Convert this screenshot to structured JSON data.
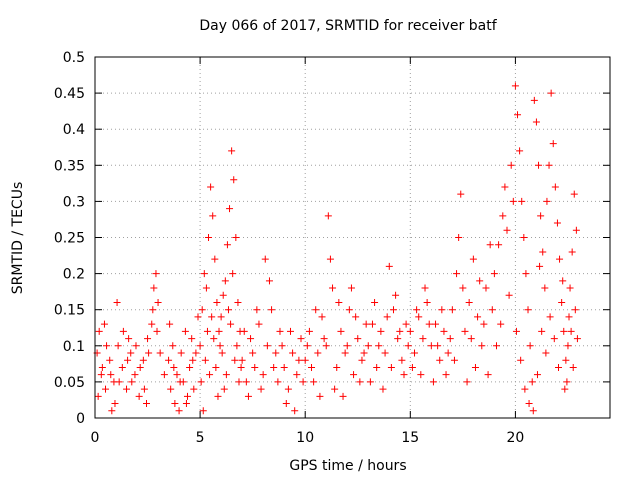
{
  "chart_data": {
    "type": "scatter",
    "title": "Day 066 of 2017, SRMTID for receiver batf",
    "xlabel": "GPS time / hours",
    "ylabel": "SRMTID / TECUs",
    "xlim": [
      0,
      24.5
    ],
    "ylim": [
      0,
      0.5
    ],
    "x_ticks": [
      0,
      5,
      10,
      15,
      20
    ],
    "x_tick_labels": [
      "0",
      "5",
      "10",
      "15",
      "20"
    ],
    "y_ticks": [
      0,
      0.05,
      0.1,
      0.15,
      0.2,
      0.25,
      0.3,
      0.35,
      0.4,
      0.45,
      0.5
    ],
    "y_tick_labels": [
      "0",
      "0.05",
      "0.1",
      "0.15",
      "0.2",
      "0.25",
      "0.3",
      "0.35",
      "0.4",
      "0.45",
      "0.5"
    ],
    "grid": true,
    "legend": "none",
    "marker": "plus",
    "color": "#ff0000",
    "series": [
      {
        "values": [
          [
            0.1,
            0.09
          ],
          [
            0.2,
            0.12
          ],
          [
            0.3,
            0.06
          ],
          [
            0.5,
            0.04
          ],
          [
            0.7,
            0.08
          ],
          [
            0.9,
            0.05
          ],
          [
            1.1,
            0.1
          ],
          [
            1.3,
            0.07
          ],
          [
            1.5,
            0.04
          ],
          [
            1.7,
            0.09
          ],
          [
            1.9,
            0.06
          ],
          [
            2.1,
            0.03
          ],
          [
            2.3,
            0.08
          ],
          [
            2.5,
            0.11
          ],
          [
            2.7,
            0.13
          ],
          [
            2.8,
            0.18
          ],
          [
            2.9,
            0.2
          ],
          [
            3.0,
            0.16
          ],
          [
            3.1,
            0.09
          ],
          [
            3.3,
            0.06
          ],
          [
            0.15,
            0.03
          ],
          [
            0.35,
            0.07
          ],
          [
            0.55,
            0.1
          ],
          [
            0.75,
            0.06
          ],
          [
            0.95,
            0.02
          ],
          [
            1.15,
            0.05
          ],
          [
            1.35,
            0.12
          ],
          [
            1.55,
            0.08
          ],
          [
            1.75,
            0.05
          ],
          [
            1.95,
            0.1
          ],
          [
            2.15,
            0.07
          ],
          [
            2.35,
            0.04
          ],
          [
            2.55,
            0.09
          ],
          [
            2.75,
            0.15
          ],
          [
            2.95,
            0.12
          ],
          [
            0.45,
            0.13
          ],
          [
            1.05,
            0.16
          ],
          [
            1.6,
            0.11
          ],
          [
            2.45,
            0.02
          ],
          [
            0.8,
            0.01
          ],
          [
            3.5,
            0.08
          ],
          [
            3.6,
            0.04
          ],
          [
            3.7,
            0.1
          ],
          [
            3.8,
            0.02
          ],
          [
            3.9,
            0.06
          ],
          [
            4.0,
            0.01
          ],
          [
            4.1,
            0.09
          ],
          [
            4.2,
            0.05
          ],
          [
            4.3,
            0.12
          ],
          [
            4.4,
            0.03
          ],
          [
            4.5,
            0.07
          ],
          [
            4.6,
            0.11
          ],
          [
            4.7,
            0.04
          ],
          [
            4.8,
            0.09
          ],
          [
            4.9,
            0.14
          ],
          [
            3.55,
            0.13
          ],
          [
            3.75,
            0.07
          ],
          [
            4.05,
            0.05
          ],
          [
            4.35,
            0.02
          ],
          [
            4.65,
            0.08
          ],
          [
            5.0,
            0.1
          ],
          [
            5.1,
            0.15
          ],
          [
            5.2,
            0.2
          ],
          [
            5.3,
            0.18
          ],
          [
            5.4,
            0.25
          ],
          [
            5.5,
            0.32
          ],
          [
            5.6,
            0.28
          ],
          [
            5.7,
            0.22
          ],
          [
            5.8,
            0.16
          ],
          [
            5.9,
            0.12
          ],
          [
            6.0,
            0.14
          ],
          [
            6.1,
            0.17
          ],
          [
            6.2,
            0.19
          ],
          [
            6.3,
            0.24
          ],
          [
            6.4,
            0.29
          ],
          [
            6.5,
            0.37
          ],
          [
            6.6,
            0.33
          ],
          [
            6.7,
            0.25
          ],
          [
            6.8,
            0.16
          ],
          [
            6.9,
            0.12
          ],
          [
            5.05,
            0.05
          ],
          [
            5.25,
            0.08
          ],
          [
            5.45,
            0.06
          ],
          [
            5.65,
            0.11
          ],
          [
            5.85,
            0.03
          ],
          [
            6.05,
            0.09
          ],
          [
            6.25,
            0.06
          ],
          [
            6.45,
            0.13
          ],
          [
            6.65,
            0.08
          ],
          [
            6.85,
            0.05
          ],
          [
            5.15,
            0.01
          ],
          [
            5.35,
            0.12
          ],
          [
            5.55,
            0.14
          ],
          [
            5.75,
            0.07
          ],
          [
            5.95,
            0.1
          ],
          [
            6.15,
            0.04
          ],
          [
            6.35,
            0.15
          ],
          [
            6.55,
            0.2
          ],
          [
            6.75,
            0.1
          ],
          [
            6.95,
            0.07
          ],
          [
            7.0,
            0.08
          ],
          [
            7.2,
            0.05
          ],
          [
            7.4,
            0.11
          ],
          [
            7.6,
            0.07
          ],
          [
            7.8,
            0.13
          ],
          [
            8.0,
            0.06
          ],
          [
            8.2,
            0.1
          ],
          [
            8.4,
            0.15
          ],
          [
            8.6,
            0.09
          ],
          [
            8.8,
            0.12
          ],
          [
            7.1,
            0.12
          ],
          [
            7.3,
            0.03
          ],
          [
            7.5,
            0.09
          ],
          [
            7.7,
            0.15
          ],
          [
            7.9,
            0.04
          ],
          [
            8.1,
            0.22
          ],
          [
            8.3,
            0.19
          ],
          [
            8.5,
            0.07
          ],
          [
            8.7,
            0.05
          ],
          [
            8.9,
            0.1
          ],
          [
            9.0,
            0.07
          ],
          [
            9.2,
            0.04
          ],
          [
            9.4,
            0.09
          ],
          [
            9.6,
            0.06
          ],
          [
            9.8,
            0.11
          ],
          [
            10.0,
            0.08
          ],
          [
            10.2,
            0.12
          ],
          [
            10.4,
            0.05
          ],
          [
            10.6,
            0.09
          ],
          [
            10.8,
            0.14
          ],
          [
            9.1,
            0.02
          ],
          [
            9.3,
            0.12
          ],
          [
            9.5,
            0.01
          ],
          [
            9.7,
            0.08
          ],
          [
            9.9,
            0.05
          ],
          [
            10.1,
            0.1
          ],
          [
            10.3,
            0.07
          ],
          [
            10.5,
            0.15
          ],
          [
            10.7,
            0.03
          ],
          [
            10.9,
            0.11
          ],
          [
            11.0,
            0.1
          ],
          [
            11.1,
            0.28
          ],
          [
            11.2,
            0.22
          ],
          [
            11.3,
            0.18
          ],
          [
            11.5,
            0.07
          ],
          [
            11.7,
            0.12
          ],
          [
            11.9,
            0.09
          ],
          [
            12.1,
            0.15
          ],
          [
            12.3,
            0.06
          ],
          [
            12.5,
            0.11
          ],
          [
            12.7,
            0.08
          ],
          [
            12.9,
            0.13
          ],
          [
            11.4,
            0.04
          ],
          [
            11.6,
            0.16
          ],
          [
            11.8,
            0.03
          ],
          [
            12.0,
            0.1
          ],
          [
            12.2,
            0.18
          ],
          [
            12.4,
            0.14
          ],
          [
            12.6,
            0.05
          ],
          [
            12.8,
            0.09
          ],
          [
            13.0,
            0.1
          ],
          [
            13.2,
            0.13
          ],
          [
            13.4,
            0.07
          ],
          [
            13.6,
            0.12
          ],
          [
            13.8,
            0.09
          ],
          [
            14.0,
            0.21
          ],
          [
            14.2,
            0.15
          ],
          [
            14.4,
            0.11
          ],
          [
            14.6,
            0.08
          ],
          [
            14.8,
            0.13
          ],
          [
            13.1,
            0.05
          ],
          [
            13.3,
            0.16
          ],
          [
            13.5,
            0.1
          ],
          [
            13.7,
            0.04
          ],
          [
            13.9,
            0.14
          ],
          [
            14.1,
            0.07
          ],
          [
            14.3,
            0.17
          ],
          [
            14.5,
            0.12
          ],
          [
            14.7,
            0.06
          ],
          [
            14.9,
            0.1
          ],
          [
            15.0,
            0.12
          ],
          [
            15.2,
            0.09
          ],
          [
            15.4,
            0.14
          ],
          [
            15.6,
            0.11
          ],
          [
            15.8,
            0.16
          ],
          [
            16.0,
            0.1
          ],
          [
            16.2,
            0.13
          ],
          [
            16.4,
            0.08
          ],
          [
            16.6,
            0.12
          ],
          [
            16.8,
            0.09
          ],
          [
            15.1,
            0.07
          ],
          [
            15.3,
            0.15
          ],
          [
            15.5,
            0.06
          ],
          [
            15.7,
            0.18
          ],
          [
            15.9,
            0.13
          ],
          [
            16.1,
            0.05
          ],
          [
            16.3,
            0.1
          ],
          [
            16.5,
            0.15
          ],
          [
            16.7,
            0.06
          ],
          [
            16.9,
            0.11
          ],
          [
            17.0,
            0.15
          ],
          [
            17.2,
            0.2
          ],
          [
            17.3,
            0.25
          ],
          [
            17.4,
            0.31
          ],
          [
            17.5,
            0.18
          ],
          [
            17.6,
            0.12
          ],
          [
            17.8,
            0.16
          ],
          [
            18.0,
            0.22
          ],
          [
            18.2,
            0.14
          ],
          [
            18.4,
            0.1
          ],
          [
            18.6,
            0.18
          ],
          [
            18.8,
            0.24
          ],
          [
            17.1,
            0.08
          ],
          [
            17.7,
            0.05
          ],
          [
            17.9,
            0.11
          ],
          [
            18.1,
            0.07
          ],
          [
            18.3,
            0.19
          ],
          [
            18.5,
            0.13
          ],
          [
            18.7,
            0.06
          ],
          [
            18.9,
            0.15
          ],
          [
            19.0,
            0.2
          ],
          [
            19.2,
            0.24
          ],
          [
            19.4,
            0.28
          ],
          [
            19.5,
            0.32
          ],
          [
            19.6,
            0.26
          ],
          [
            19.8,
            0.35
          ],
          [
            19.9,
            0.3
          ],
          [
            20.0,
            0.46
          ],
          [
            20.1,
            0.42
          ],
          [
            20.2,
            0.37
          ],
          [
            20.3,
            0.3
          ],
          [
            20.4,
            0.25
          ],
          [
            20.5,
            0.2
          ],
          [
            20.6,
            0.15
          ],
          [
            20.7,
            0.1
          ],
          [
            20.8,
            0.05
          ],
          [
            20.9,
            0.44
          ],
          [
            21.0,
            0.41
          ],
          [
            21.1,
            0.35
          ],
          [
            21.2,
            0.28
          ],
          [
            19.1,
            0.1
          ],
          [
            19.3,
            0.13
          ],
          [
            19.7,
            0.17
          ],
          [
            20.05,
            0.12
          ],
          [
            20.25,
            0.08
          ],
          [
            20.45,
            0.04
          ],
          [
            20.65,
            0.02
          ],
          [
            20.85,
            0.01
          ],
          [
            21.05,
            0.06
          ],
          [
            21.15,
            0.21
          ],
          [
            21.3,
            0.23
          ],
          [
            21.4,
            0.18
          ],
          [
            21.5,
            0.3
          ],
          [
            21.6,
            0.35
          ],
          [
            21.7,
            0.45
          ],
          [
            21.8,
            0.38
          ],
          [
            21.9,
            0.32
          ],
          [
            22.0,
            0.27
          ],
          [
            22.1,
            0.22
          ],
          [
            22.2,
            0.16
          ],
          [
            22.3,
            0.12
          ],
          [
            22.4,
            0.08
          ],
          [
            22.5,
            0.1
          ],
          [
            22.6,
            0.18
          ],
          [
            22.7,
            0.23
          ],
          [
            22.8,
            0.31
          ],
          [
            22.9,
            0.26
          ],
          [
            22.35,
            0.04
          ],
          [
            22.55,
            0.14
          ],
          [
            22.75,
            0.07
          ],
          [
            21.25,
            0.12
          ],
          [
            21.45,
            0.09
          ],
          [
            21.65,
            0.14
          ],
          [
            21.85,
            0.11
          ],
          [
            22.05,
            0.07
          ],
          [
            22.25,
            0.19
          ],
          [
            22.45,
            0.05
          ],
          [
            22.65,
            0.12
          ],
          [
            22.85,
            0.15
          ],
          [
            22.95,
            0.11
          ]
        ]
      }
    ]
  }
}
